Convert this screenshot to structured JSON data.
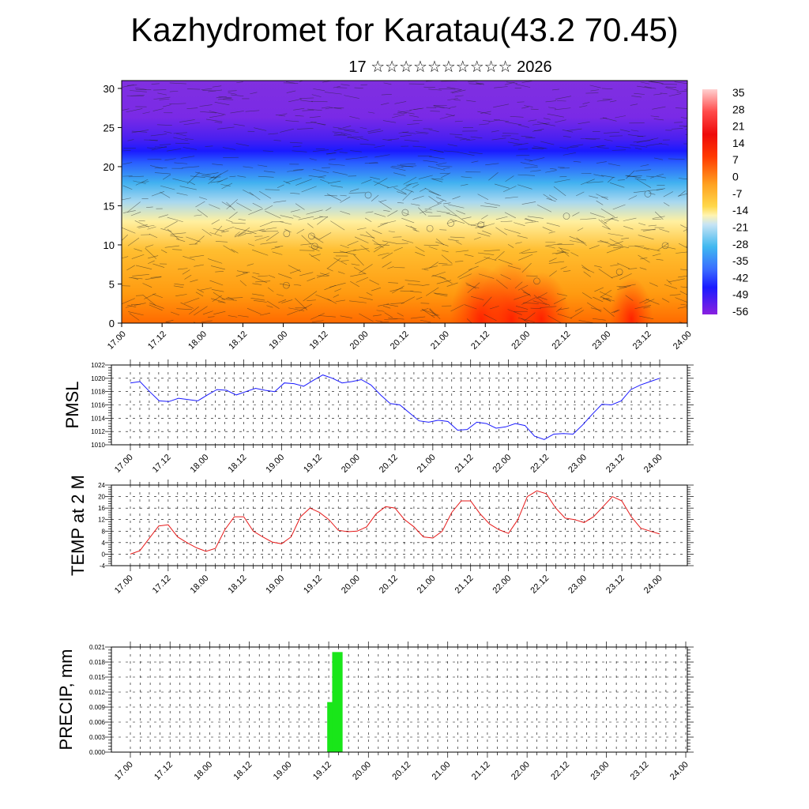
{
  "title": "Kazhydromet for Karatau(43.2 70.45)",
  "subtitle": "17 ☆☆☆☆☆☆☆☆☆☆ 2026",
  "chart_data": [
    {
      "type": "heatmap",
      "name": "vertical-section",
      "x_ticks": [
        "17.00",
        "17.12",
        "18.00",
        "18.12",
        "19.00",
        "19.12",
        "20.00",
        "20.12",
        "21.00",
        "21.12",
        "22.00",
        "22.12",
        "23.00",
        "23.12",
        "24.00"
      ],
      "yticks": [
        "0",
        "5",
        "10",
        "15",
        "20",
        "25",
        "30"
      ],
      "ylim": [
        0,
        31
      ],
      "colorbar_labels": [
        "35",
        "28",
        "21",
        "14",
        "7",
        "0",
        "-7",
        "-14",
        "-21",
        "-28",
        "-35",
        "-42",
        "-49",
        "-56"
      ],
      "colorbar_colors": {
        "warm": "#ff1a00",
        "mid": "#fff0a0",
        "cold": "#1a1aff",
        "top": "#7a2ae6"
      }
    },
    {
      "type": "line",
      "name": "pmsl",
      "ylabel": "PMSL",
      "color": "#1a1aff",
      "ylim": [
        1010,
        1022
      ],
      "yticks": [
        "1010",
        "1012",
        "1014",
        "1016",
        "1018",
        "1020",
        "1022"
      ],
      "x_ticks": [
        "17.00",
        "17.12",
        "18.00",
        "18.12",
        "19.00",
        "19.12",
        "20.00",
        "20.12",
        "21.00",
        "21.12",
        "22.00",
        "22.12",
        "23.00",
        "23.12",
        "24.00"
      ],
      "values": [
        1019.3,
        1019.5,
        1018,
        1016.6,
        1016.5,
        1017,
        1016.8,
        1016.6,
        1017.5,
        1018.3,
        1018.2,
        1017.5,
        1018,
        1018.5,
        1018.2,
        1018,
        1019.3,
        1019.2,
        1018.8,
        1019.7,
        1020.5,
        1020,
        1019.3,
        1019.5,
        1019.8,
        1019,
        1017.5,
        1016.2,
        1016,
        1014.8,
        1013.6,
        1013.4,
        1013.7,
        1013.5,
        1012.2,
        1012.3,
        1013.4,
        1013.2,
        1012.5,
        1012.7,
        1013.2,
        1012.9,
        1011.3,
        1010.8,
        1011.6,
        1011.7,
        1011.6,
        1013,
        1014.6,
        1016.1,
        1016,
        1016.6,
        1018.3,
        1019,
        1019.5,
        1020
      ]
    },
    {
      "type": "line",
      "name": "temp2m",
      "ylabel": "TEMP at 2 M",
      "color": "#e61a1a",
      "ylim": [
        -4,
        24
      ],
      "yticks": [
        "-4",
        "0",
        "4",
        "8",
        "12",
        "16",
        "20",
        "24"
      ],
      "x_ticks": [
        "17.00",
        "17.12",
        "18.00",
        "18.12",
        "19.00",
        "19.12",
        "20.00",
        "20.12",
        "21.00",
        "21.12",
        "22.00",
        "22.12",
        "23.00",
        "23.12",
        "24.00"
      ],
      "values": [
        0,
        1.2,
        5.5,
        9.8,
        10.2,
        6,
        4,
        2.2,
        1,
        2,
        8.5,
        13,
        13,
        8,
        6,
        4.2,
        3.6,
        6,
        13,
        16,
        14.5,
        12,
        8.3,
        7.8,
        8,
        9.5,
        14,
        16.5,
        16,
        12,
        9.5,
        6,
        5.6,
        8,
        14.5,
        18.5,
        18.5,
        14,
        10.5,
        8.5,
        7.2,
        12,
        20,
        22,
        21,
        16,
        12.5,
        12,
        11,
        13,
        16.5,
        20,
        18.5,
        13,
        9,
        8,
        7
      ]
    },
    {
      "type": "bar",
      "name": "precip",
      "ylabel": "PRECIP, mm",
      "color": "#19e619",
      "ylim": [
        0,
        0.021
      ],
      "yticks": [
        "0.000",
        "0.003",
        "0.006",
        "0.009",
        "0.012",
        "0.015",
        "0.018",
        "0.021"
      ],
      "x_ticks": [
        "17.00",
        "17.12",
        "18.00",
        "18.12",
        "19.00",
        "19.12",
        "20.00",
        "20.12",
        "21.00",
        "21.12",
        "22.00",
        "22.12",
        "23.00",
        "23.12",
        "24.00"
      ],
      "bars": [
        {
          "x_index": 20.35,
          "value": 0.01
        },
        {
          "x_index": 20.85,
          "value": 0.02
        }
      ]
    }
  ]
}
